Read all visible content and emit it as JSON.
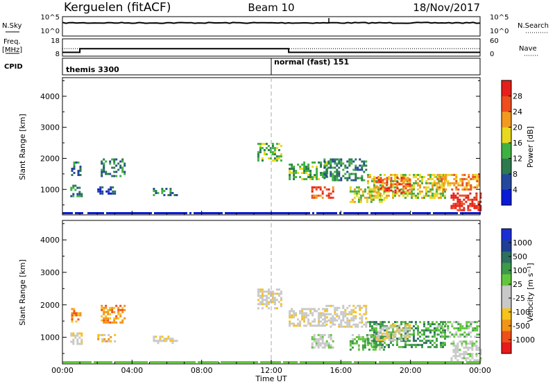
{
  "header": {
    "station": "Kerguelen (fitACF)",
    "beam": "Beam 10",
    "date": "18/Nov/2017"
  },
  "top_panels": {
    "nsky_label": "N.Sky",
    "nsearch_label": "N.Search",
    "freq_label": "Freq.",
    "freq_unit": "[MHz]",
    "nave_label": "Nave",
    "cpid_label": "CPID",
    "nsky_ticks": [
      "10^5",
      "10^0"
    ],
    "nsearch_ticks": [
      "10^5",
      "10^0"
    ],
    "freq_ticks": [
      "18",
      "8"
    ],
    "nave_ticks": [
      "60",
      "0"
    ],
    "freq_mhz": [
      {
        "t": 0,
        "v": 10.2
      },
      {
        "t": 1,
        "v": 12.3
      },
      {
        "t": 13,
        "v": 10.2
      },
      {
        "t": 24,
        "v": 10.2
      }
    ],
    "nave_level": 26
  },
  "cpid": [
    {
      "name": "themis 3300",
      "start": 0
    },
    {
      "name": "normal (fast) 151",
      "start": 12
    }
  ],
  "chart_data": [
    {
      "type": "heatmap",
      "name": "Power",
      "ylabel": "Slant Range [km]",
      "colorbar_label": "Power [dB]",
      "ylim": [
        180,
        4600
      ],
      "yticks": [
        1000,
        2000,
        3000,
        4000
      ],
      "colorbar_ticks": [
        "28",
        "24",
        "20",
        "16",
        "12",
        "8",
        "4"
      ],
      "colorbar_colors": [
        "#0a1ad6",
        "#24489e",
        "#2c7a4e",
        "#3fb142",
        "#e8d81e",
        "#f29a1f",
        "#ee4d1c",
        "#e51f1a"
      ],
      "regions": [
        {
          "t0": 0.45,
          "t1": 1.1,
          "r0": 800,
          "r1": 1150,
          "level": 2
        },
        {
          "t0": 0.5,
          "t1": 1.0,
          "r0": 1450,
          "r1": 1900,
          "level": 2
        },
        {
          "t0": 2.2,
          "t1": 3.6,
          "r0": 1450,
          "r1": 2000,
          "level": 2
        },
        {
          "t0": 2.0,
          "t1": 3.0,
          "r0": 850,
          "r1": 1100,
          "level": 1
        },
        {
          "t0": 5.2,
          "t1": 6.6,
          "r0": 800,
          "r1": 1050,
          "level": 2
        },
        {
          "t0": 11.2,
          "t1": 12.6,
          "r0": 1900,
          "r1": 2500,
          "level": 3
        },
        {
          "t0": 13.0,
          "t1": 15.2,
          "r0": 1350,
          "r1": 1900,
          "level": 3
        },
        {
          "t0": 14.3,
          "t1": 15.5,
          "r0": 700,
          "r1": 1100,
          "level": 6
        },
        {
          "t0": 15.0,
          "t1": 17.5,
          "r0": 1300,
          "r1": 2000,
          "level": 2
        },
        {
          "t0": 16.5,
          "t1": 18.5,
          "r0": 600,
          "r1": 1100,
          "level": 4
        },
        {
          "t0": 17.5,
          "t1": 22.0,
          "r0": 700,
          "r1": 1500,
          "level": 4
        },
        {
          "t0": 18.0,
          "t1": 20.0,
          "r0": 900,
          "r1": 1400,
          "level": 6
        },
        {
          "t0": 21.5,
          "t1": 24.0,
          "r0": 1000,
          "r1": 1500,
          "level": 5
        },
        {
          "t0": 22.3,
          "t1": 24.0,
          "r0": 300,
          "r1": 900,
          "level": 7
        }
      ]
    },
    {
      "type": "heatmap",
      "name": "Velocity",
      "ylabel": "Slant Range [km]",
      "colorbar_label": "Velocity [m s⁻¹]",
      "ylim": [
        180,
        4600
      ],
      "yticks": [
        1000,
        2000,
        3000,
        4000
      ],
      "colorbar_ticks": [
        "1000",
        "500",
        "100",
        "25",
        "-25",
        "-100",
        "-500",
        "-1000"
      ],
      "colorbar_colors": [
        "#e81a1a",
        "#ee5019",
        "#f19418",
        "#f6c21b",
        "#c8c8c8",
        "#c8c8c8",
        "#62c63d",
        "#3c9a48",
        "#2c7060",
        "#1f3e96",
        "#1a2ed6"
      ],
      "regions": [
        {
          "t0": 0.45,
          "t1": 1.1,
          "r0": 800,
          "r1": 1150,
          "level": 4
        },
        {
          "t0": 0.5,
          "t1": 1.0,
          "r0": 1450,
          "r1": 1900,
          "level": 2
        },
        {
          "t0": 2.2,
          "t1": 3.6,
          "r0": 1450,
          "r1": 2000,
          "level": 2
        },
        {
          "t0": 2.0,
          "t1": 3.0,
          "r0": 850,
          "r1": 1100,
          "level": 3
        },
        {
          "t0": 5.2,
          "t1": 6.6,
          "r0": 800,
          "r1": 1050,
          "level": 4
        },
        {
          "t0": 11.2,
          "t1": 12.6,
          "r0": 1900,
          "r1": 2500,
          "level": 4
        },
        {
          "t0": 13.0,
          "t1": 15.2,
          "r0": 1350,
          "r1": 1900,
          "level": 4
        },
        {
          "t0": 14.3,
          "t1": 15.5,
          "r0": 700,
          "r1": 1100,
          "level": 5
        },
        {
          "t0": 15.0,
          "t1": 17.5,
          "r0": 1300,
          "r1": 2000,
          "level": 4
        },
        {
          "t0": 16.5,
          "t1": 18.5,
          "r0": 600,
          "r1": 1100,
          "level": 6
        },
        {
          "t0": 17.5,
          "t1": 22.0,
          "r0": 700,
          "r1": 1500,
          "level": 7
        },
        {
          "t0": 18.0,
          "t1": 20.0,
          "r0": 900,
          "r1": 1400,
          "level": 4
        },
        {
          "t0": 21.5,
          "t1": 24.0,
          "r0": 1000,
          "r1": 1500,
          "level": 6
        },
        {
          "t0": 22.3,
          "t1": 24.0,
          "r0": 300,
          "r1": 900,
          "level": 5
        }
      ]
    }
  ],
  "x_axis": {
    "label": "Time UT",
    "xlim": [
      0,
      24
    ],
    "tick_labels": [
      "00:00",
      "04:00",
      "08:00",
      "12:00",
      "16:00",
      "20:00",
      "00:00"
    ]
  }
}
